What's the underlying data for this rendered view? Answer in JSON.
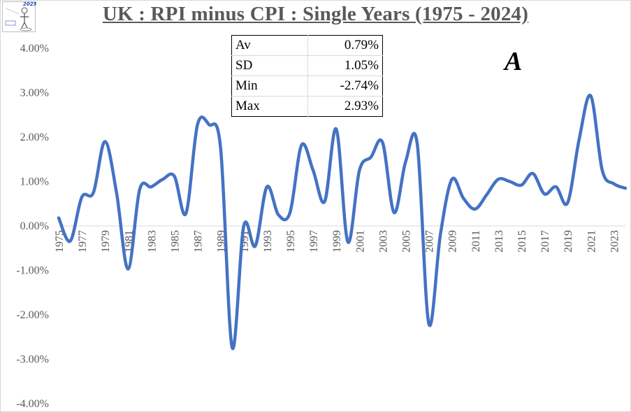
{
  "chart_data": {
    "type": "line",
    "title": "UK : RPI minus CPI : Single Years (1975 - 2024)",
    "xlabel": "",
    "ylabel": "",
    "ylim": [
      -4,
      4
    ],
    "yticks": [
      "4.00%",
      "3.00%",
      "2.00%",
      "1.00%",
      "0.00%",
      "-1.00%",
      "-2.00%",
      "-3.00%",
      "-4.00%"
    ],
    "xtick_labels": [
      "1975",
      "1977",
      "1979",
      "1981",
      "1983",
      "1985",
      "1987",
      "1989",
      "1991",
      "1993",
      "1995",
      "1997",
      "1999",
      "2001",
      "2003",
      "2005",
      "2007",
      "2009",
      "2011",
      "2013",
      "2015",
      "2017",
      "2019",
      "2021",
      "2023"
    ],
    "x": [
      1975,
      1976,
      1977,
      1978,
      1979,
      1980,
      1981,
      1982,
      1983,
      1984,
      1985,
      1986,
      1987,
      1988,
      1989,
      1990,
      1991,
      1992,
      1993,
      1994,
      1995,
      1996,
      1997,
      1998,
      1999,
      2000,
      2001,
      2002,
      2003,
      2004,
      2005,
      2006,
      2007,
      2008,
      2009,
      2010,
      2011,
      2012,
      2013,
      2014,
      2015,
      2016,
      2017,
      2018,
      2019,
      2020,
      2021,
      2022,
      2023,
      2024
    ],
    "series": [
      {
        "color": "#4472c4",
        "values": [
          0.18,
          -0.34,
          0.65,
          0.75,
          1.9,
          0.75,
          -0.97,
          0.82,
          0.88,
          1.05,
          1.12,
          0.28,
          2.28,
          2.28,
          1.75,
          -2.74,
          0.0,
          -0.45,
          0.88,
          0.25,
          0.3,
          1.82,
          1.25,
          0.55,
          2.18,
          -0.36,
          1.25,
          1.55,
          1.88,
          0.3,
          1.45,
          1.85,
          -2.2,
          -0.2,
          1.05,
          0.62,
          0.38,
          0.7,
          1.05,
          1.0,
          0.92,
          1.18,
          0.72,
          0.88,
          0.52,
          1.95,
          2.93,
          1.25,
          0.95,
          0.85
        ]
      }
    ],
    "grid": false,
    "legend": "none"
  },
  "stats": {
    "rows": [
      {
        "key": "Av",
        "value": "0.79%"
      },
      {
        "key": "SD",
        "value": "1.05%"
      },
      {
        "key": "Min",
        "value": "-2.74%"
      },
      {
        "key": "Max",
        "value": "2.93%"
      }
    ]
  },
  "logo": {
    "year": "2025"
  },
  "watermark": "A"
}
